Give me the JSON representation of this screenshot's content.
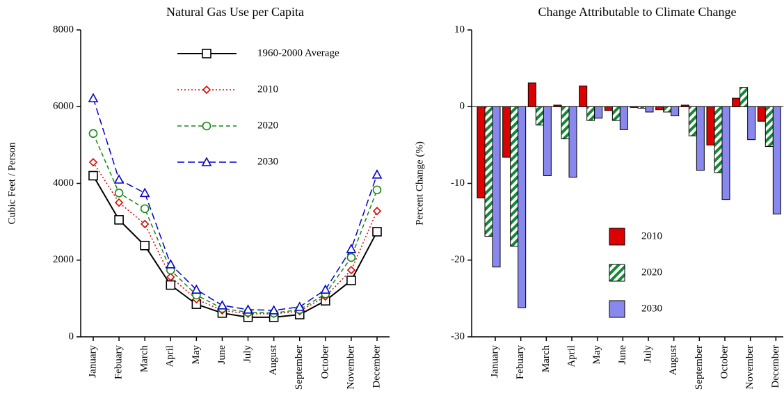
{
  "chart_data": [
    {
      "type": "line",
      "title": "Natural Gas Use per Capita",
      "y_label": "Cubic Feet / Person",
      "categories": [
        "January",
        "Febuary",
        "March",
        "April",
        "May",
        "June",
        "July",
        "August",
        "September",
        "October",
        "November",
        "December"
      ],
      "ylim": [
        0,
        8000
      ],
      "yticks": [
        0,
        2000,
        4000,
        6000,
        8000
      ],
      "grid": false,
      "legend": "upper right",
      "series": [
        {
          "name": "1960-2000  Average",
          "color": "#000000",
          "marker": "square",
          "dash": "solid",
          "values": [
            4200,
            3050,
            2380,
            1350,
            850,
            620,
            510,
            510,
            580,
            940,
            1470,
            2740
          ]
        },
        {
          "name": "2010",
          "color": "#dd0000",
          "marker": "diamond",
          "dash": "dotted",
          "values": [
            4550,
            3500,
            2940,
            1560,
            980,
            690,
            600,
            600,
            670,
            1050,
            1740,
            3280
          ]
        },
        {
          "name": "2020",
          "color": "#118811",
          "marker": "circle",
          "dash": "dashed",
          "values": [
            5300,
            3750,
            3340,
            1740,
            1090,
            740,
            640,
            620,
            710,
            1120,
            2070,
            3830
          ]
        },
        {
          "name": "2030",
          "color": "#0000cc",
          "marker": "triangle",
          "dash": "longdash",
          "values": [
            6220,
            4100,
            3750,
            1890,
            1230,
            820,
            710,
            690,
            780,
            1230,
            2290,
            4230
          ]
        }
      ]
    },
    {
      "type": "bar",
      "title": "Change Attributable to Climate Change",
      "y_label": "Percent Change (%)",
      "categories": [
        "January",
        "Febuary",
        "March",
        "April",
        "May",
        "June",
        "July",
        "August",
        "September",
        "October",
        "November",
        "December"
      ],
      "ylim": [
        -30,
        10
      ],
      "yticks": [
        -30,
        -20,
        -10,
        0,
        10
      ],
      "grid": false,
      "legend": "lower center",
      "series": [
        {
          "name": "2010",
          "color": "#dd0000",
          "hatch": false,
          "values": [
            -11.9,
            -6.6,
            3.1,
            0.2,
            2.7,
            -0.5,
            -0.1,
            -0.4,
            0.2,
            -5.0,
            1.1,
            -1.9
          ]
        },
        {
          "name": "2020",
          "color": "#118833",
          "hatch": true,
          "values": [
            -16.9,
            -18.2,
            -2.4,
            -4.2,
            -1.8,
            -1.8,
            -0.2,
            -0.7,
            -3.8,
            -8.6,
            2.5,
            -5.2
          ]
        },
        {
          "name": "2030",
          "color": "#8888ee",
          "hatch": false,
          "values": [
            -20.9,
            -26.2,
            -9.0,
            -9.2,
            -1.5,
            -3.0,
            -0.7,
            -1.2,
            -8.3,
            -12.1,
            -4.3,
            -14.0
          ]
        }
      ]
    }
  ]
}
